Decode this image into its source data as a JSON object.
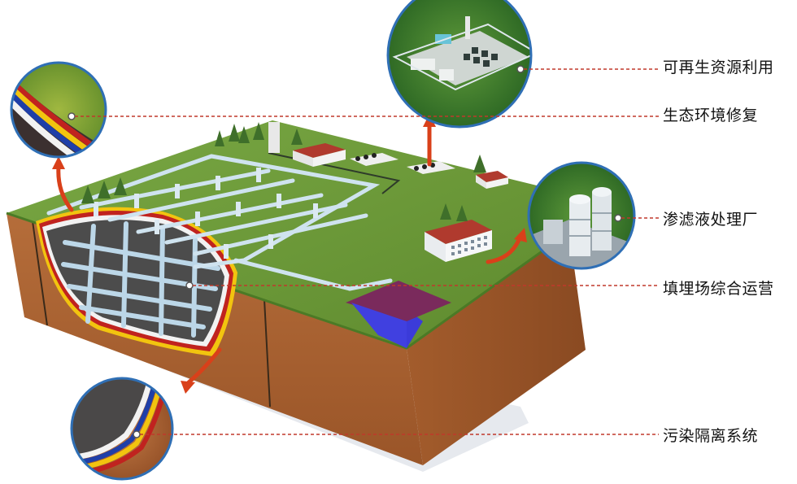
{
  "labels": {
    "renewable": "可再生资源利用",
    "eco_restore": "生态环境修复",
    "leachate_plant": "渗滤液处理厂",
    "landfill_ops": "填埋场综合运营",
    "pollution_isolation": "污染隔离系统"
  },
  "colors": {
    "grass": "#6f9a3a",
    "soil": "#b06a3b",
    "waste": "#4a4a4a",
    "pipe": "#cfe3ef",
    "leader_line": "#c0392b",
    "arrow": "#d9401a",
    "liner_red": "#c0231f",
    "liner_yellow": "#f2c40f",
    "liner_blue": "#1f3fa8",
    "tank": "#7a2a5c",
    "roof": "#b03a2e"
  }
}
